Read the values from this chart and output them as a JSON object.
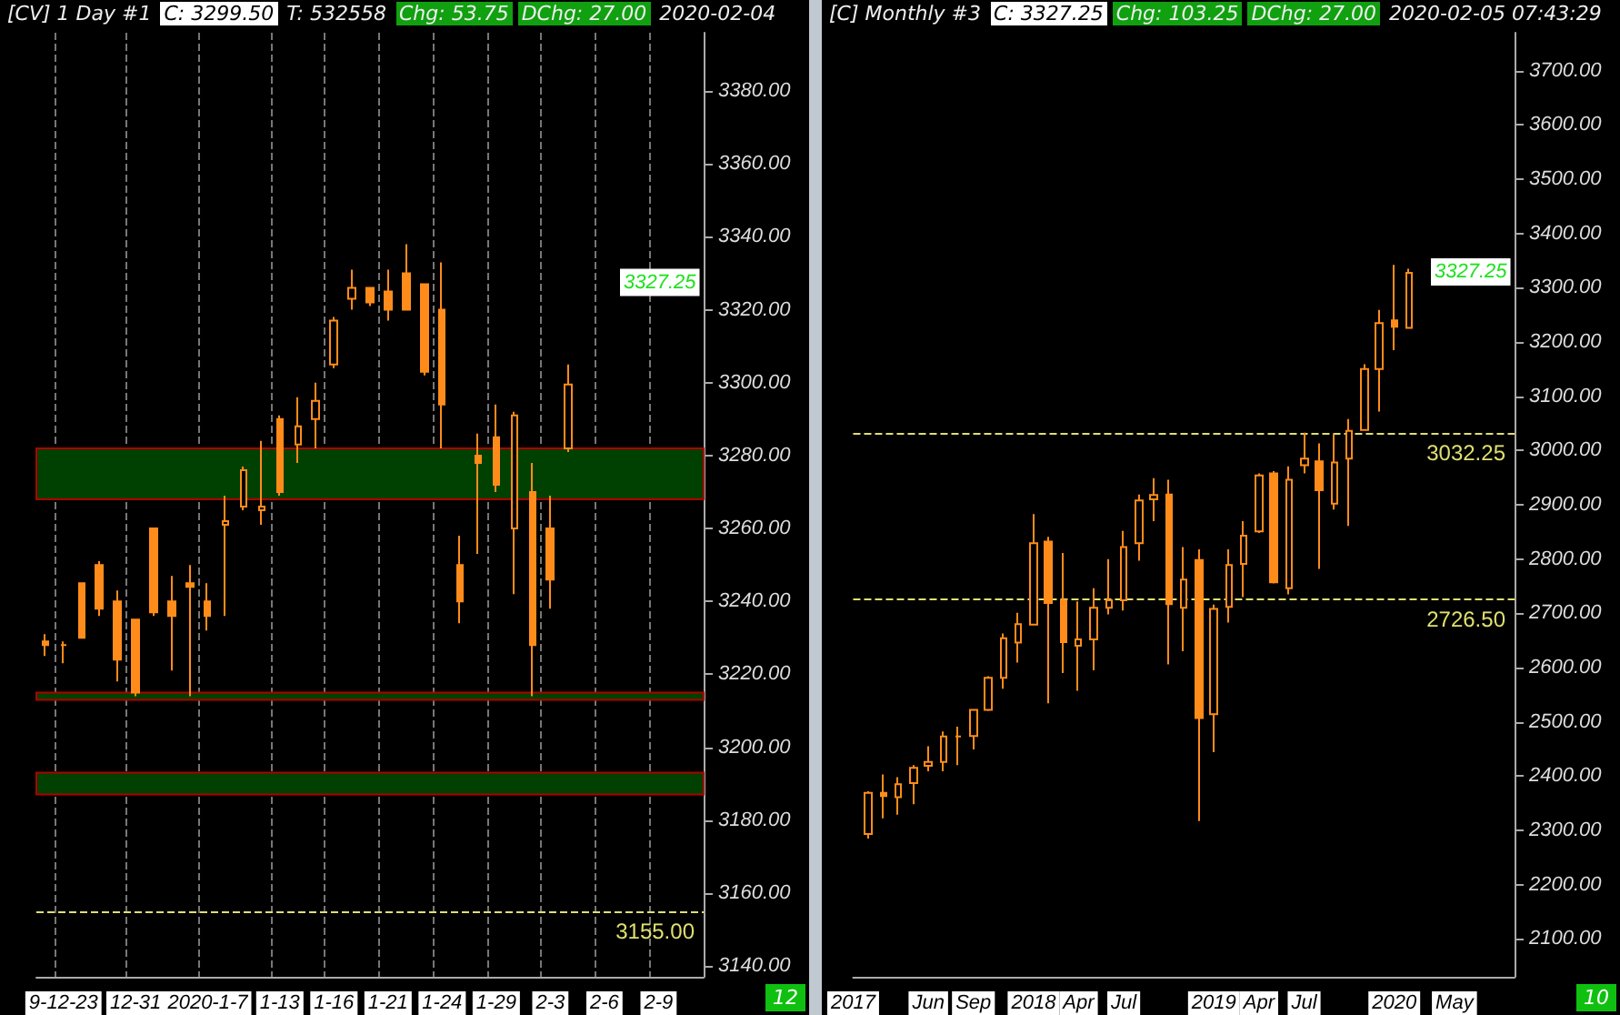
{
  "chart_data": [
    {
      "type": "candlestick",
      "title": "[CV]  1 Day  #1",
      "color": "#ff8c1a",
      "grid": "x",
      "categories": [
        null,
        "9-12-23",
        null,
        null,
        null,
        "12-31",
        null,
        null,
        null,
        "2020-1-7",
        null,
        null,
        null,
        "1-13",
        null,
        null,
        "1-16",
        null,
        null,
        "1-21",
        null,
        null,
        "1-24",
        null,
        null,
        "1-29",
        null,
        null,
        "2-3",
        null,
        null,
        "2-6",
        null,
        null,
        "2-9",
        null,
        null
      ],
      "ohlc": [
        [
          3229,
          3231,
          3225,
          3228
        ],
        [
          3228,
          3229,
          3223,
          3228
        ],
        [
          3245,
          3245,
          3230,
          3230
        ],
        [
          3250,
          3251,
          3236,
          3238
        ],
        [
          3240,
          3243,
          3218,
          3224
        ],
        [
          3235,
          3235,
          3214,
          3215
        ],
        [
          3260,
          3260,
          3236,
          3237
        ],
        [
          3240,
          3247,
          3221,
          3236
        ],
        [
          3245,
          3250,
          3214,
          3244
        ],
        [
          3240,
          3245,
          3232,
          3236
        ],
        [
          3261,
          3269,
          3236,
          3262
        ],
        [
          3266,
          3277,
          3265,
          3276
        ],
        [
          3265,
          3284,
          3261,
          3266
        ],
        [
          3290,
          3291,
          3269,
          3270
        ],
        [
          3283,
          3296,
          3278,
          3288
        ],
        [
          3290,
          3300,
          3282,
          3295
        ],
        [
          3305,
          3318,
          3304,
          3317
        ],
        [
          3323,
          3331,
          3320,
          3326
        ],
        [
          3326,
          3326,
          3321,
          3322
        ],
        [
          3325,
          3331,
          3317,
          3320
        ],
        [
          3330,
          3338,
          3320,
          3320
        ],
        [
          3327,
          3327,
          3302,
          3303
        ],
        [
          3320,
          3333,
          3282,
          3294
        ],
        [
          3250,
          3258,
          3234,
          3240
        ],
        [
          3280,
          3286,
          3253,
          3278
        ],
        [
          3285,
          3294,
          3270,
          3272
        ],
        [
          3260,
          3292,
          3242,
          3291
        ],
        [
          3270,
          3278,
          3214,
          3228
        ],
        [
          3260,
          3269,
          3238,
          3246
        ],
        [
          3282,
          3305,
          3281,
          3299.5
        ],
        null,
        null,
        null,
        null,
        null,
        null,
        null
      ],
      "ylim": [
        3137,
        3396
      ],
      "yticks": [
        {
          "value": 3140,
          "label": "3140.00"
        },
        {
          "value": 3160,
          "label": "3160.00"
        },
        {
          "value": 3180,
          "label": "3180.00"
        },
        {
          "value": 3200,
          "label": "3200.00"
        },
        {
          "value": 3220,
          "label": "3220.00"
        },
        {
          "value": 3240,
          "label": "3240.00"
        },
        {
          "value": 3260,
          "label": "3260.00"
        },
        {
          "value": 3280,
          "label": "3280.00"
        },
        {
          "value": 3300,
          "label": "3300.00"
        },
        {
          "value": 3320,
          "label": "3320.00"
        },
        {
          "value": 3340,
          "label": "3340.00"
        },
        {
          "value": 3360,
          "label": "3360.00"
        },
        {
          "value": 3380,
          "label": "3380.00"
        }
      ],
      "bands": [
        {
          "axis": "y",
          "from": 3268,
          "to": 3282,
          "color": "#004000"
        },
        {
          "axis": "y",
          "from": 3213,
          "to": 3215,
          "color": "#004000"
        },
        {
          "axis": "y",
          "from": 3187,
          "to": 3193,
          "color": "#004000"
        }
      ],
      "ref_lines": [
        {
          "axis": "y",
          "value": 3155,
          "label": "3155.00",
          "color": "#e0e070",
          "line_style": "dashed"
        }
      ],
      "annotations": [
        "C: 3299.50",
        "T: 532558",
        "Chg: 53.75",
        "DChg: 27.00",
        "2020-02-04",
        {
          "text": "3327.25",
          "y": 3327.25
        },
        "12"
      ]
    },
    {
      "type": "candlestick",
      "title": "[C]  Monthly  #3",
      "color": "#ff8c1a",
      "categories": [
        "2017",
        null,
        null,
        null,
        null,
        "Jun",
        null,
        null,
        "Sep",
        null,
        null,
        null,
        "2018",
        null,
        null,
        "Apr",
        null,
        null,
        "Jul",
        null,
        null,
        null,
        null,
        null,
        "2019",
        null,
        null,
        "Apr",
        null,
        null,
        "Jul",
        null,
        null,
        null,
        null,
        null,
        "2020",
        null,
        null,
        null,
        "May",
        null,
        null,
        null,
        null
      ],
      "ohlc": [
        null,
        [
          2293,
          2372,
          2285,
          2369
        ],
        [
          2369,
          2403,
          2322,
          2363
        ],
        [
          2361,
          2398,
          2329,
          2385
        ],
        [
          2387,
          2420,
          2348,
          2415
        ],
        [
          2419,
          2455,
          2409,
          2426
        ],
        [
          2426,
          2482,
          2409,
          2473
        ],
        [
          2473,
          2491,
          2420,
          2473
        ],
        [
          2474,
          2523,
          2449,
          2522
        ],
        [
          2522,
          2584,
          2520,
          2581
        ],
        [
          2581,
          2663,
          2561,
          2654
        ],
        [
          2646,
          2701,
          2609,
          2680
        ],
        [
          2679,
          2883,
          2679,
          2829
        ],
        [
          2832,
          2841,
          2534,
          2719
        ],
        [
          2724,
          2811,
          2590,
          2647
        ],
        [
          2640,
          2722,
          2557,
          2652
        ],
        [
          2652,
          2746,
          2595,
          2710
        ],
        [
          2710,
          2800,
          2698,
          2724
        ],
        [
          2724,
          2852,
          2705,
          2822
        ],
        [
          2829,
          2919,
          2797,
          2908
        ],
        [
          2910,
          2949,
          2870,
          2918
        ],
        [
          2919,
          2946,
          2606,
          2717
        ],
        [
          2710,
          2822,
          2630,
          2762
        ],
        [
          2798,
          2818,
          2317,
          2507
        ],
        [
          2514,
          2716,
          2444,
          2708
        ],
        [
          2712,
          2818,
          2683,
          2789
        ],
        [
          2791,
          2870,
          2730,
          2843
        ],
        [
          2851,
          2958,
          2848,
          2954
        ],
        [
          2958,
          2962,
          2755,
          2757
        ],
        [
          2746,
          2971,
          2735,
          2946
        ],
        [
          2973,
          3033,
          2958,
          2985
        ],
        [
          2980,
          3013,
          2782,
          2927
        ],
        [
          2902,
          3030,
          2891,
          2978
        ],
        [
          2985,
          3058,
          2861,
          3036
        ],
        [
          3038,
          3159,
          3038,
          3150
        ],
        [
          3150,
          3259,
          3072,
          3235
        ],
        [
          3240,
          3342,
          3185,
          3228
        ],
        [
          3226,
          3335,
          3226,
          3327.25
        ],
        null,
        null,
        null,
        null,
        null,
        null,
        null
      ],
      "ylim": [
        2030,
        3770
      ],
      "yticks": [
        {
          "value": 2100,
          "label": "2100.00"
        },
        {
          "value": 2200,
          "label": "2200.00"
        },
        {
          "value": 2300,
          "label": "2300.00"
        },
        {
          "value": 2400,
          "label": "2400.00"
        },
        {
          "value": 2500,
          "label": "2500.00"
        },
        {
          "value": 2600,
          "label": "2600.00"
        },
        {
          "value": 2700,
          "label": "2700.00"
        },
        {
          "value": 2800,
          "label": "2800.00"
        },
        {
          "value": 2900,
          "label": "2900.00"
        },
        {
          "value": 3000,
          "label": "3000.00"
        },
        {
          "value": 3100,
          "label": "3100.00"
        },
        {
          "value": 3200,
          "label": "3200.00"
        },
        {
          "value": 3300,
          "label": "3300.00"
        },
        {
          "value": 3400,
          "label": "3400.00"
        },
        {
          "value": 3500,
          "label": "3500.00"
        },
        {
          "value": 3600,
          "label": "3600.00"
        },
        {
          "value": 3700,
          "label": "3700.00"
        }
      ],
      "ref_lines": [
        {
          "axis": "y",
          "value": 3032.25,
          "label": "3032.25",
          "color": "#e0e070",
          "line_style": "dashed"
        },
        {
          "axis": "y",
          "value": 2726.5,
          "label": "2726.50",
          "color": "#e0e070",
          "line_style": "dashed"
        }
      ],
      "annotations": [
        "C: 3327.25",
        "Chg: 103.25",
        "DChg: 27.00",
        "2020-02-05 07:43:29",
        {
          "text": "3327.25",
          "y": 3327.25
        },
        "10"
      ]
    }
  ]
}
